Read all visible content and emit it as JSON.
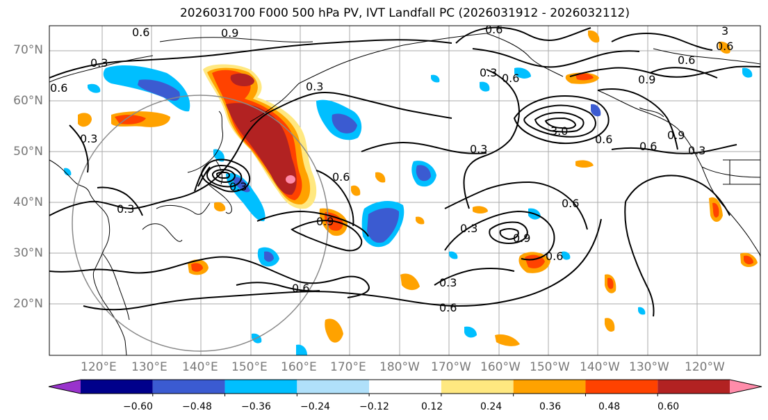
{
  "title": "2026031700 F000 500 hPa PV, IVT Landfall PC (2026031912 - 2026032112)",
  "lat_ticks": [
    "70°N",
    "60°N",
    "50°N",
    "40°N",
    "30°N",
    "20°N"
  ],
  "lon_ticks": [
    "120°E",
    "130°E",
    "140°E",
    "150°E",
    "160°E",
    "170°E",
    "180°W",
    "170°W",
    "160°W",
    "150°W",
    "140°W",
    "130°W",
    "120°W"
  ],
  "contour_labels": [
    "0.6",
    "0.9",
    "0.3",
    "0.6",
    "0.3",
    "0.6",
    "0.3",
    "0.6",
    "0.6",
    "3",
    "0.6",
    "0.9",
    "0.3",
    "0.9",
    "3.0",
    "0.6",
    "0.6",
    "0.3",
    "0.3",
    "0.6",
    "0.3",
    "0.3",
    "0.9",
    "0.6",
    "0.3",
    "0.9",
    "0.6",
    "0.6",
    "0.3",
    "0.6"
  ],
  "colorbar": {
    "ticks": [
      "−0.60",
      "−0.48",
      "−0.36",
      "−0.24",
      "−0.12",
      "0.12",
      "0.24",
      "0.36",
      "0.48",
      "0.60"
    ],
    "colors": [
      "#9933cc",
      "#00008b",
      "#3b5bd1",
      "#00bfff",
      "#b0e0fa",
      "#ffffff",
      "#ffe880",
      "#ffa200",
      "#ff4200",
      "#b22222",
      "#ff8caa"
    ]
  }
}
